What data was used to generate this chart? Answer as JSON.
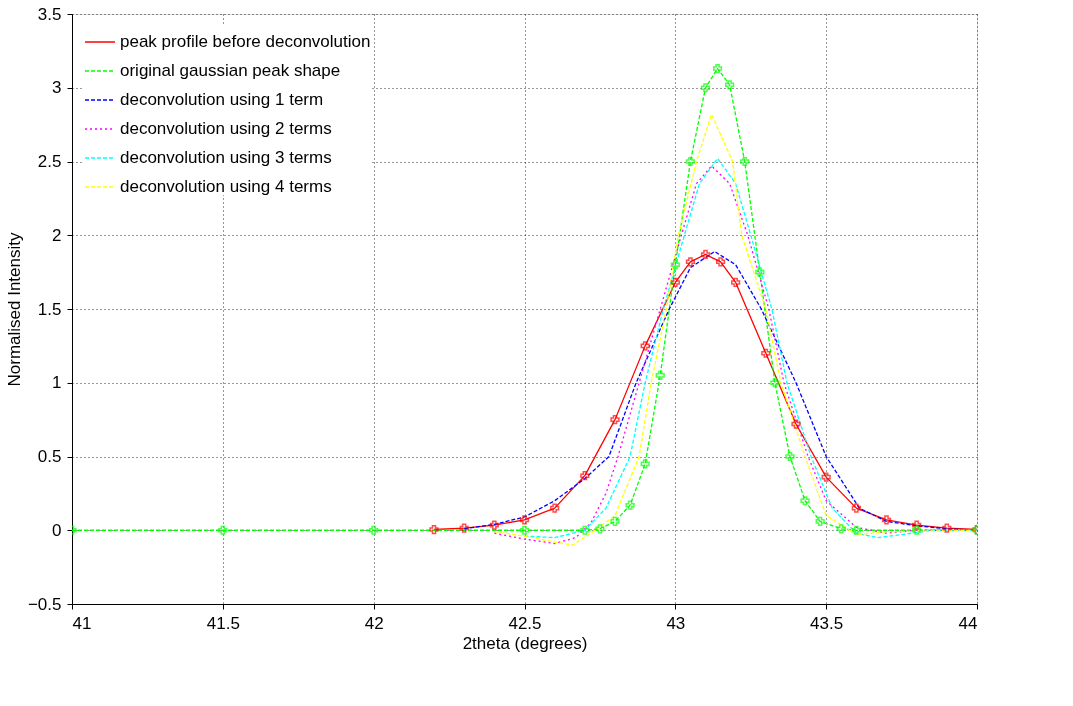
{
  "chart_data": {
    "type": "line",
    "xlabel": "2theta (degrees)",
    "ylabel": "Normalised Intensity",
    "xlim": [
      41,
      44
    ],
    "xticks": [
      41,
      41.5,
      42,
      42.5,
      43,
      43.5,
      44
    ],
    "ylim": [
      -0.5,
      3.5
    ],
    "yticks": [
      -0.5,
      0,
      0.5,
      1,
      1.5,
      2,
      2.5,
      3,
      3.5
    ],
    "grid": true,
    "legend": "top left",
    "series": [
      {
        "name": "peak profile before deconvolution",
        "color": "#ff0000",
        "line_style": "solid",
        "marker": "cross",
        "x": [
          42.2,
          42.3,
          42.4,
          42.5,
          42.6,
          42.7,
          42.8,
          42.9,
          43.0,
          43.05,
          43.1,
          43.15,
          43.2,
          43.3,
          43.4,
          43.5,
          43.6,
          43.7,
          43.8,
          43.9,
          44
        ],
        "values": [
          0.005,
          0.015,
          0.035,
          0.07,
          0.15,
          0.37,
          0.75,
          1.25,
          1.68,
          1.82,
          1.87,
          1.82,
          1.68,
          1.2,
          0.72,
          0.36,
          0.15,
          0.07,
          0.035,
          0.015,
          0.005
        ]
      },
      {
        "name": "original gaussian peak shape",
        "color": "#00ff00",
        "line_style": "dashed",
        "marker": "cross",
        "x": [
          41,
          41.5,
          42,
          42.5,
          42.7,
          42.75,
          42.8,
          42.85,
          42.9,
          42.95,
          43.0,
          43.05,
          43.1,
          43.14,
          43.18,
          43.23,
          43.28,
          43.33,
          43.38,
          43.43,
          43.48,
          43.55,
          43.6,
          43.8,
          44
        ],
        "values": [
          0,
          0,
          0,
          0,
          0,
          0.01,
          0.06,
          0.17,
          0.45,
          1.05,
          1.8,
          2.5,
          3.0,
          3.13,
          3.02,
          2.5,
          1.75,
          1.0,
          0.5,
          0.2,
          0.06,
          0.01,
          0,
          0,
          0
        ]
      },
      {
        "name": "deconvolution using 1 term",
        "color": "#0000ff",
        "line_style": "dashed",
        "x": [
          42.3,
          42.4,
          42.5,
          42.6,
          42.7,
          42.78,
          42.87,
          42.98,
          43.05,
          43.13,
          43.2,
          43.285,
          43.4,
          43.5,
          43.61,
          43.7,
          43.8,
          43.9,
          44
        ],
        "values": [
          0.01,
          0.04,
          0.09,
          0.2,
          0.35,
          0.5,
          1.0,
          1.5,
          1.78,
          1.89,
          1.8,
          1.5,
          1.0,
          0.5,
          0.15,
          0.06,
          0.03,
          0.01,
          0
        ]
      },
      {
        "name": "deconvolution using 2 terms",
        "color": "#ff00ff",
        "line_style": "dotted",
        "x": [
          42.4,
          42.5,
          42.6,
          42.67,
          42.72,
          42.77,
          42.81,
          42.88,
          42.95,
          43.02,
          43.07,
          43.12,
          43.18,
          43.24,
          43.31,
          43.36,
          43.44,
          43.5,
          43.6,
          43.7,
          43.8,
          44
        ],
        "values": [
          -0.02,
          -0.06,
          -0.09,
          -0.05,
          0.05,
          0.25,
          0.5,
          1.0,
          1.5,
          2.0,
          2.35,
          2.47,
          2.35,
          2.0,
          1.5,
          1.0,
          0.5,
          0.2,
          0.02,
          -0.02,
          0,
          0
        ]
      },
      {
        "name": "deconvolution using 3 terms",
        "color": "#00ffff",
        "line_style": "dashed",
        "x": [
          42.5,
          42.6,
          42.7,
          42.77,
          42.85,
          42.9,
          42.96,
          43.03,
          43.08,
          43.14,
          43.2,
          43.25,
          43.32,
          43.37,
          43.45,
          43.52,
          43.6,
          43.67,
          43.75,
          43.85,
          44
        ],
        "values": [
          -0.04,
          -0.05,
          0.0,
          0.15,
          0.5,
          1.0,
          1.5,
          2.0,
          2.35,
          2.52,
          2.35,
          2.0,
          1.5,
          1.0,
          0.5,
          0.15,
          -0.02,
          -0.05,
          -0.03,
          0,
          0
        ]
      },
      {
        "name": "deconvolution using 4 terms",
        "color": "#ffff00",
        "line_style": "dashed",
        "x": [
          42.4,
          42.5,
          42.6,
          42.66,
          42.72,
          42.8,
          42.88,
          42.92,
          42.97,
          43.01,
          43.07,
          43.12,
          43.19,
          43.22,
          43.3,
          43.35,
          43.43,
          43.5,
          43.6,
          43.7,
          44
        ],
        "values": [
          -0.01,
          -0.04,
          -0.08,
          -0.1,
          -0.02,
          0.1,
          0.5,
          1.0,
          1.5,
          2.0,
          2.5,
          2.82,
          2.5,
          2.0,
          1.5,
          1.0,
          0.5,
          0.1,
          -0.03,
          -0.01,
          0
        ]
      }
    ]
  }
}
